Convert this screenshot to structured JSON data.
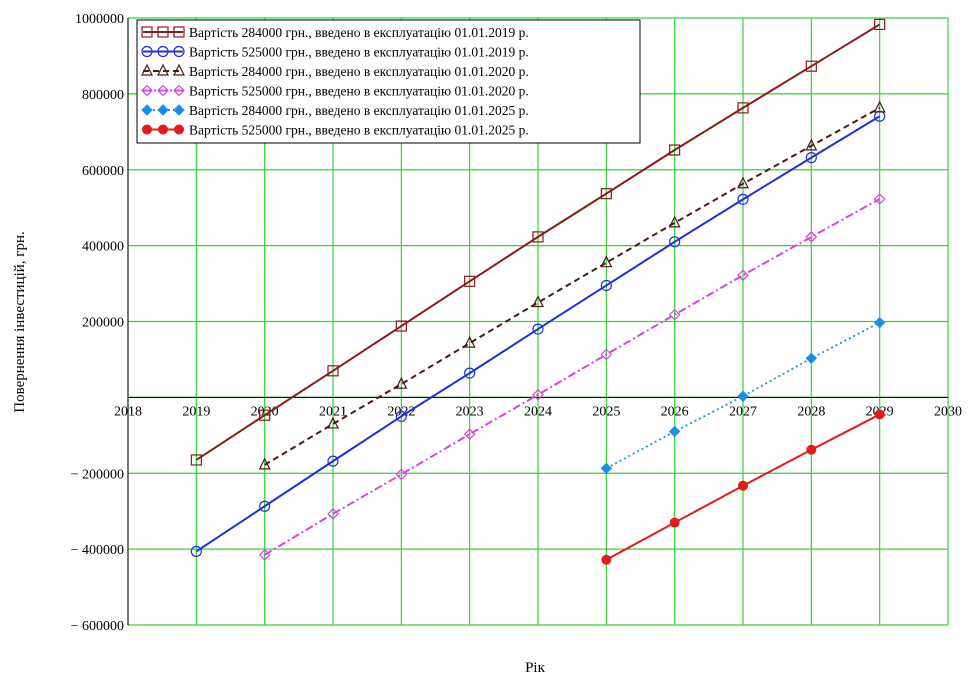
{
  "chart_data": {
    "type": "line",
    "xlabel": "Рік",
    "ylabel": "Повернення інвестицій, грн.",
    "xlim": [
      2018,
      2030
    ],
    "ylim": [
      -600000,
      1000000
    ],
    "x_ticks": [
      2018,
      2019,
      2020,
      2021,
      2022,
      2023,
      2024,
      2025,
      2026,
      2027,
      2028,
      2029,
      2030
    ],
    "y_ticks": [
      -600000,
      -400000,
      -200000,
      0,
      200000,
      400000,
      600000,
      800000,
      1000000
    ],
    "x_tick_labels": [
      "2018",
      "2019",
      "2020",
      "2021",
      "2022",
      "2023",
      "2024",
      "2025",
      "2026",
      "2027",
      "2028",
      "2029",
      "2030"
    ],
    "y_tick_labels": [
      "− 600000",
      "− 400000",
      "− 200000",
      "",
      "200000",
      "400000",
      "600000",
      "800000",
      "1000000"
    ],
    "grid": true,
    "legend_position": "top-left",
    "series": [
      {
        "name": "Вартість 284000 грн., введено в експлуатацію 01.01.2019 р.",
        "color": "#8b1a1a",
        "marker": "square-open",
        "line": "solid",
        "x": [
          2019,
          2020,
          2021,
          2022,
          2023,
          2024,
          2025,
          2026,
          2027,
          2028,
          2029
        ],
        "values": [
          -165000,
          -47000,
          70000,
          188000,
          306000,
          423000,
          537000,
          652000,
          763000,
          873000,
          983000
        ]
      },
      {
        "name": "Вартість 525000 грн., введено в експлуатацію 01.01.2019 р.",
        "color": "#1f2fd6",
        "marker": "circle-open",
        "line": "solid",
        "x": [
          2019,
          2020,
          2021,
          2022,
          2023,
          2024,
          2025,
          2026,
          2027,
          2028,
          2029
        ],
        "values": [
          -406000,
          -287000,
          -168000,
          -50000,
          64000,
          180000,
          295000,
          410000,
          522000,
          632000,
          741000
        ]
      },
      {
        "name": "Вартість 284000 грн., введено в експлуатацію 01.01.2020 р.",
        "color": "#4a1a14",
        "marker": "triangle-open",
        "line": "dashed",
        "x": [
          2020,
          2021,
          2022,
          2023,
          2024,
          2025,
          2026,
          2027,
          2028,
          2029
        ],
        "values": [
          -178000,
          -70000,
          35000,
          143000,
          250000,
          355000,
          460000,
          563000,
          663000,
          763000
        ]
      },
      {
        "name": "Вартість 525000 грн., введено в експлуатацію 01.01.2020 р.",
        "color": "#e040e0",
        "marker": "diamond-open",
        "line": "dashdot",
        "x": [
          2020,
          2021,
          2022,
          2023,
          2024,
          2025,
          2026,
          2027,
          2028,
          2029
        ],
        "values": [
          -415000,
          -307000,
          -203000,
          -97000,
          7000,
          113000,
          218000,
          322000,
          423000,
          523000
        ]
      },
      {
        "name": "Вартість 284000 грн., введено в експлуатацію 01.01.2025 р.",
        "color": "#1a8fe6",
        "marker": "diamond-filled",
        "line": "dotted",
        "x": [
          2025,
          2026,
          2027,
          2028,
          2029
        ],
        "values": [
          -187000,
          -90000,
          3000,
          103000,
          197000
        ]
      },
      {
        "name": "Вартість 525000 грн., введено в експлуатацію 01.01.2025 р.",
        "color": "#e61a1a",
        "marker": "circle-filled",
        "line": "solid",
        "x": [
          2025,
          2026,
          2027,
          2028,
          2029
        ],
        "values": [
          -428000,
          -330000,
          -233000,
          -138000,
          -45000
        ]
      }
    ]
  }
}
